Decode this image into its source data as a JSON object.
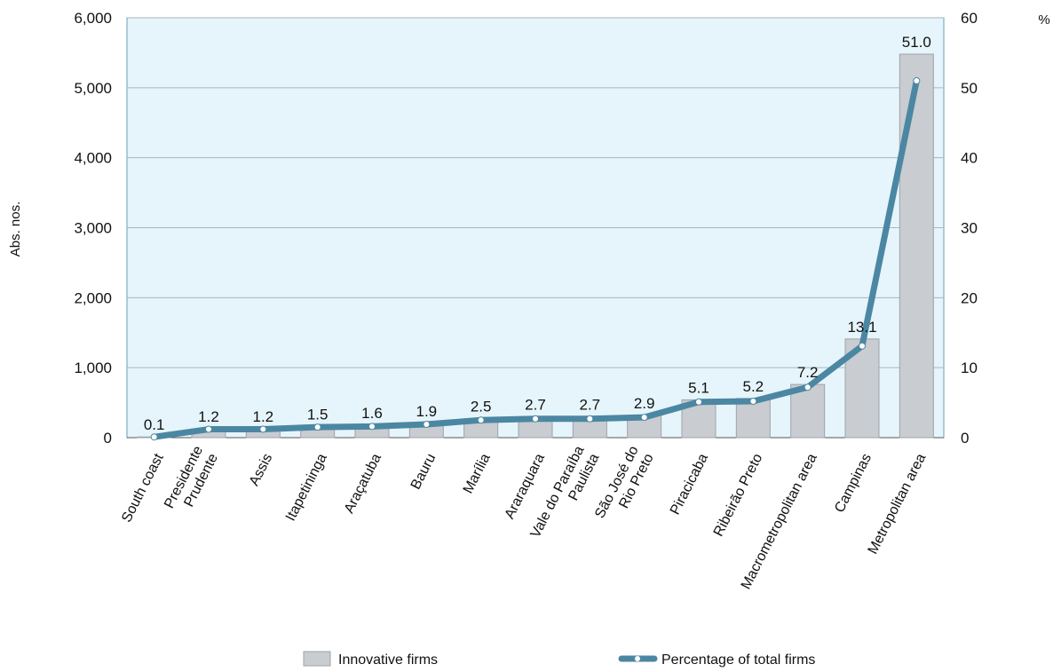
{
  "chart_data": {
    "type": "bar",
    "categories": [
      "South coast",
      "Presidente Prudente",
      "Assis",
      "Itapetininga",
      "Araçatuba",
      "Bauru",
      "Marília",
      "Araraquara",
      "Vale do Paraíba Paulista",
      "São José do Rio Preto",
      "Piracicaba",
      "Ribeirão Preto",
      "Macrometropolitan area",
      "Campinas",
      "Metropolitan area"
    ],
    "category_lines": [
      [
        "South coast"
      ],
      [
        "Presidente",
        "Prudente"
      ],
      [
        "Assis"
      ],
      [
        "Itapetininga"
      ],
      [
        "Araçatuba"
      ],
      [
        "Bauru"
      ],
      [
        "Marília"
      ],
      [
        "Araraquara"
      ],
      [
        "Vale do Paraíba",
        "Paulista"
      ],
      [
        "São José do",
        "Rio Preto"
      ],
      [
        "Piracicaba"
      ],
      [
        "Ribeirão Preto"
      ],
      [
        "Macrometropolitan area"
      ],
      [
        "Campinas"
      ],
      [
        "Metropolitan area"
      ]
    ],
    "series": [
      {
        "name": "Innovative firms",
        "type": "bar",
        "axis": "left",
        "color": "#c9ccd0",
        "values": [
          10,
          125,
          130,
          160,
          175,
          200,
          270,
          300,
          300,
          320,
          540,
          560,
          760,
          1410,
          5480
        ]
      },
      {
        "name": "Percentage of total firms",
        "type": "line",
        "axis": "right",
        "color": "#4b87a2",
        "values": [
          0.1,
          1.2,
          1.2,
          1.5,
          1.6,
          1.9,
          2.5,
          2.7,
          2.7,
          2.9,
          5.1,
          5.2,
          7.2,
          13.1,
          51.0
        ],
        "labels": [
          "0.1",
          "1.2",
          "1.2",
          "1.5",
          "1.6",
          "1.9",
          "2.5",
          "2.7",
          "2.7",
          "2.9",
          "5.1",
          "5.2",
          "7.2",
          "13.1",
          "51.0"
        ]
      }
    ],
    "y_left": {
      "label": "Abs. nos.",
      "range": [
        0,
        6000
      ],
      "ticks": [
        0,
        1000,
        2000,
        3000,
        4000,
        5000,
        6000
      ],
      "tick_labels": [
        "0",
        "1,000",
        "2,000",
        "3,000",
        "4,000",
        "5,000",
        "6,000"
      ]
    },
    "y_right": {
      "label": "%",
      "range": [
        0,
        60
      ],
      "ticks": [
        0,
        10,
        20,
        30,
        40,
        50,
        60
      ],
      "tick_labels": [
        "0",
        "10",
        "20",
        "30",
        "40",
        "50",
        "60"
      ]
    },
    "grid": true,
    "legend": "bottom",
    "plot_background": "#e6f5fb"
  }
}
